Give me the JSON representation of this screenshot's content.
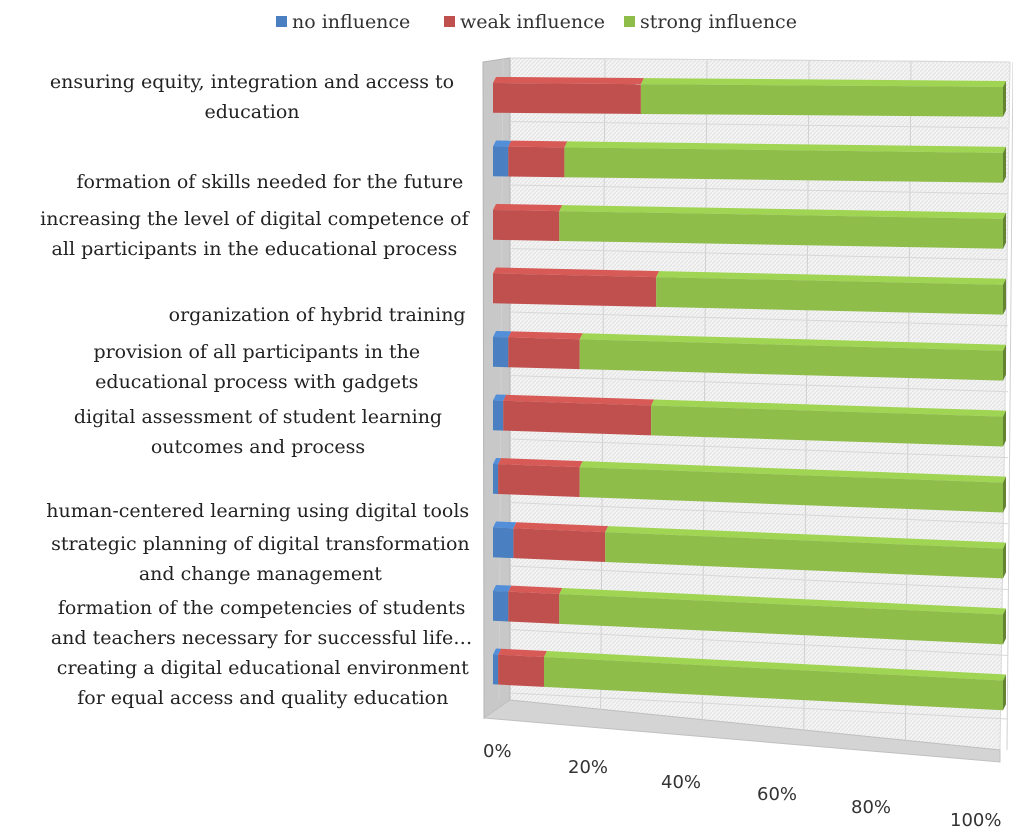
{
  "chart_data": {
    "type": "bar",
    "orientation": "horizontal",
    "stacked": "percent",
    "three_d": true,
    "legend": {
      "placement": "top",
      "entries": [
        "no influence",
        "weak influence",
        "strong influence"
      ]
    },
    "x_tick_labels": [
      "0%",
      "20%",
      "40%",
      "60%",
      "80%",
      "100%"
    ],
    "xlim": [
      0,
      100
    ],
    "grid": true,
    "categories": [
      [
        "ensuring equity, integration and access to",
        "education"
      ],
      [
        "formation of skills needed for the future"
      ],
      [
        "increasing the level of digital competence of",
        "all participants in the educational process"
      ],
      [
        "organization of hybrid training"
      ],
      [
        "provision of all participants in the",
        "educational process with gadgets"
      ],
      [
        "digital assessment of student learning",
        "outcomes and process"
      ],
      [
        "human-centered learning using digital tools"
      ],
      [
        "strategic planning of digital transformation",
        "and change management"
      ],
      [
        "formation of the competencies of students",
        "and teachers necessary for successful life…"
      ],
      [
        "creating a digital educational environment",
        "for equal access and quality education"
      ]
    ],
    "series": [
      {
        "name": "no influence",
        "color": "#4a7fc1",
        "values": [
          0,
          3,
          0,
          0,
          3,
          2,
          1,
          4,
          3,
          1
        ]
      },
      {
        "name": "weak influence",
        "color": "#c0504d",
        "values": [
          29,
          11,
          13,
          32,
          14,
          29,
          16,
          18,
          10,
          9
        ]
      },
      {
        "name": "strong influence",
        "color": "#8fbd4a",
        "values": [
          71,
          86,
          87,
          68,
          83,
          69,
          83,
          78,
          87,
          90
        ]
      }
    ]
  }
}
